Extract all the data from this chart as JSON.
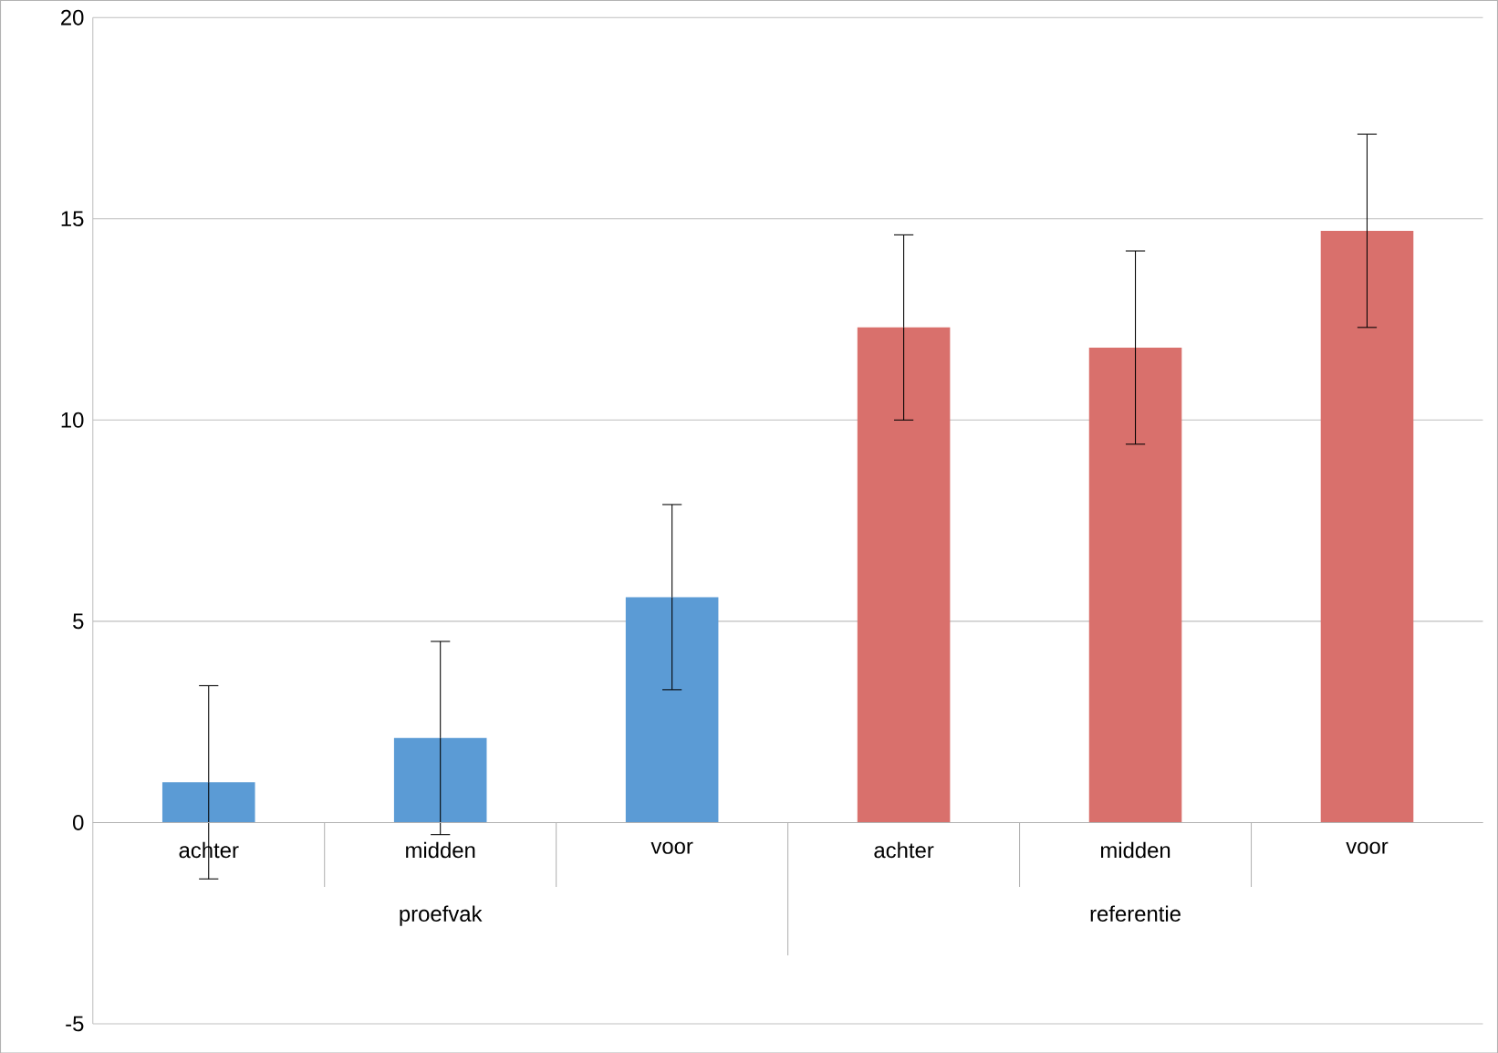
{
  "chart_data": {
    "type": "bar",
    "categories": [
      "achter",
      "midden",
      "voor",
      "achter",
      "midden",
      "voor"
    ],
    "values": [
      1.0,
      2.1,
      5.6,
      12.3,
      11.8,
      14.7
    ],
    "errors": [
      2.4,
      2.4,
      2.3,
      2.3,
      2.4,
      2.4
    ],
    "colors": [
      "#5b9bd5",
      "#5b9bd5",
      "#5b9bd5",
      "#d9706c",
      "#d9706c",
      "#d9706c"
    ],
    "ylim": [
      -5,
      20
    ],
    "yticks": [
      -5,
      0,
      5,
      10,
      15,
      20
    ],
    "grid": "y",
    "annotations": [
      "proefvak",
      "referentie"
    ]
  }
}
